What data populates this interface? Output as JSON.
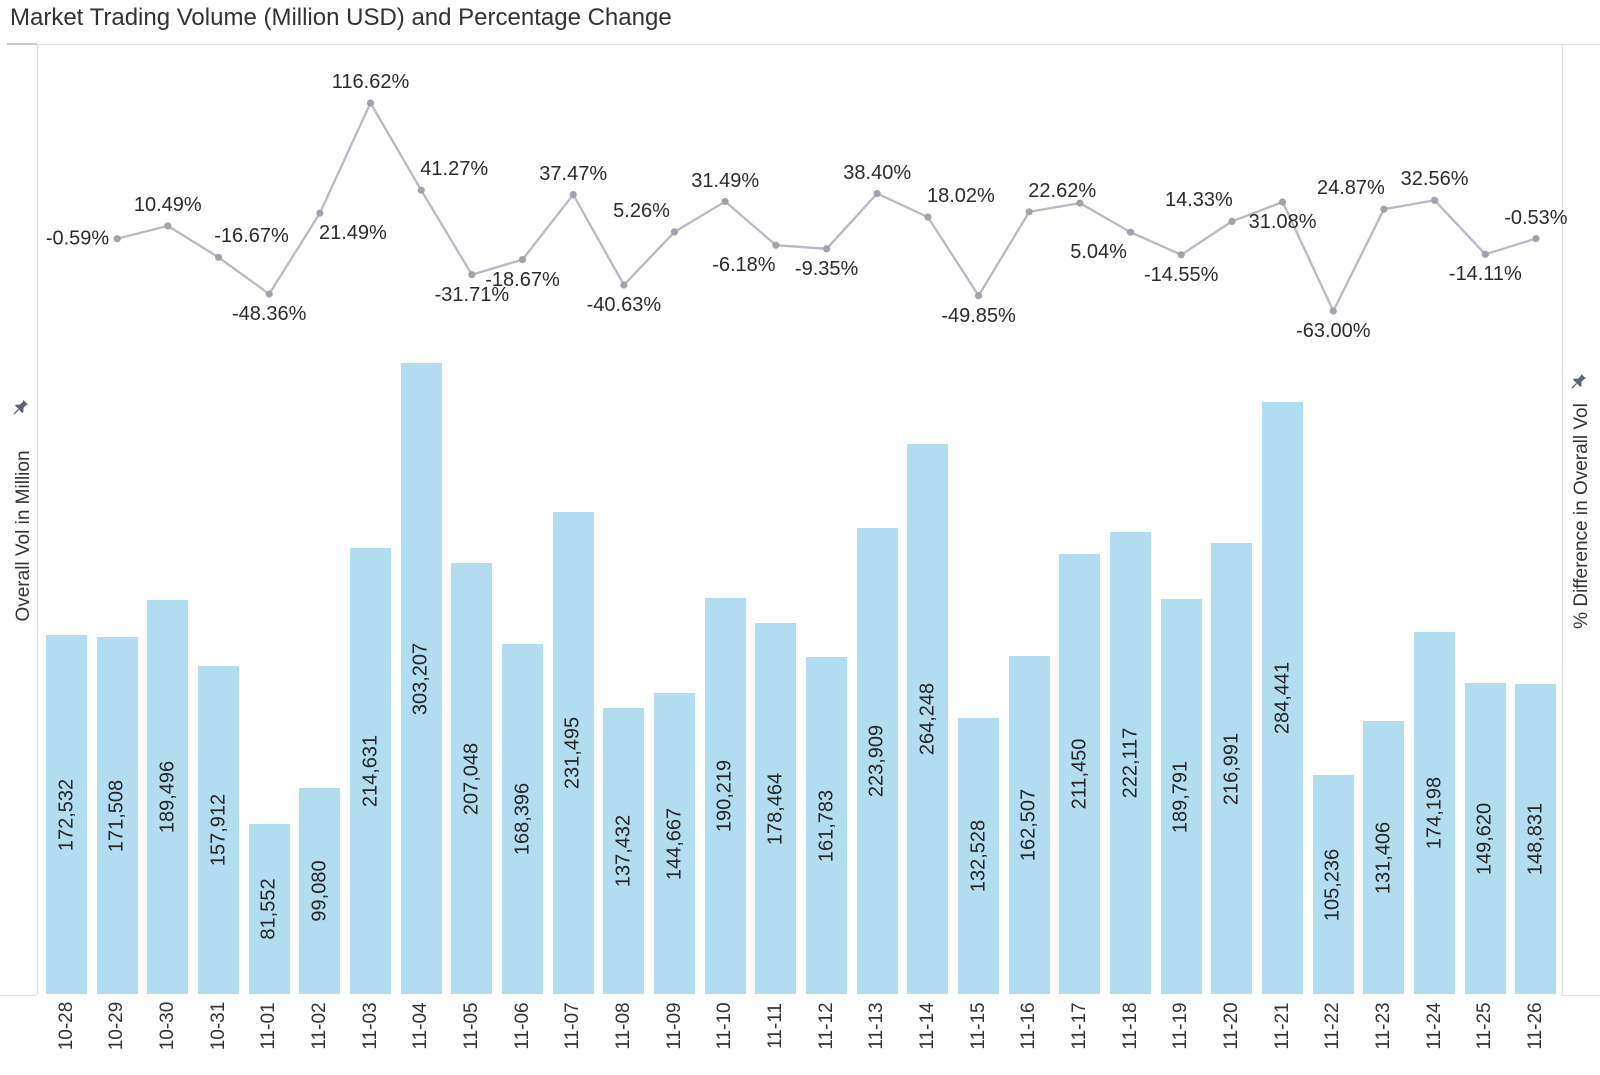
{
  "title": "Market Trading Volume (Million USD) and Percentage Change",
  "axes": {
    "left": {
      "title": "Overall Vol in Million",
      "pin_icon": "pushpin-icon"
    },
    "right": {
      "title": "% Difference in Overall Vol",
      "pin_icon": "pushpin-icon"
    }
  },
  "colors": {
    "bar": "#b2dcf0",
    "line": "#b7b9c4",
    "marker": "#9fa2af",
    "pin": "#5b6573",
    "border": "#e0e0e0",
    "border_dark": "#c9c9c9",
    "title_text": "#323232",
    "label_text": "#262626"
  },
  "chart_data": {
    "type": "combo-bar-line",
    "title": "Market Trading Volume (Million USD) and Percentage Change",
    "categories": [
      "10-28",
      "10-29",
      "10-30",
      "10-31",
      "11-01",
      "11-02",
      "11-03",
      "11-04",
      "11-05",
      "11-06",
      "11-07",
      "11-08",
      "11-09",
      "11-10",
      "11-11",
      "11-12",
      "11-13",
      "11-14",
      "11-15",
      "11-16",
      "11-17",
      "11-18",
      "11-19",
      "11-20",
      "11-21",
      "11-22",
      "11-23",
      "11-24",
      "11-25",
      "11-26"
    ],
    "grid": false,
    "legend": "none",
    "series": [
      {
        "name": "Overall Vol in Million",
        "type": "bar",
        "ylim": [
          0,
          456000
        ],
        "values": [
          172532,
          171508,
          189496,
          157912,
          81552,
          99080,
          214631,
          303207,
          207048,
          168396,
          231495,
          137432,
          144667,
          190219,
          178464,
          161783,
          223909,
          264248,
          132528,
          162507,
          211450,
          222117,
          189791,
          216991,
          284441,
          105236,
          131406,
          174198,
          149620,
          148831
        ],
        "value_labels": [
          "172,532",
          "171,508",
          "189,496",
          "157,912",
          "81,552",
          "99,080",
          "214,631",
          "303,207",
          "207,048",
          "168,396",
          "231,495",
          "137,432",
          "144,667",
          "190,219",
          "178,464",
          "161,783",
          "223,909",
          "264,248",
          "132,528",
          "162,507",
          "211,450",
          "222,117",
          "189,791",
          "216,991",
          "284,441",
          "105,236",
          "131,406",
          "174,198",
          "149,620",
          "148,831"
        ],
        "value_label_rotation": -90
      },
      {
        "name": "% Difference in Overall Vol",
        "type": "line",
        "x_categories": [
          "10-29",
          "10-30",
          "10-31",
          "11-01",
          "11-02",
          "11-03",
          "11-04",
          "11-05",
          "11-06",
          "11-07",
          "11-08",
          "11-09",
          "11-10",
          "11-11",
          "11-12",
          "11-13",
          "11-14",
          "11-15",
          "11-16",
          "11-17",
          "11-18",
          "11-19",
          "11-20",
          "11-21",
          "11-22",
          "11-23",
          "11-24",
          "11-25",
          "11-26"
        ],
        "values": [
          -0.59,
          10.49,
          -16.67,
          -48.36,
          21.49,
          116.62,
          41.27,
          -31.71,
          -18.67,
          37.47,
          -40.63,
          5.26,
          31.49,
          -6.18,
          -9.35,
          38.4,
          18.02,
          -49.85,
          22.62,
          30.12,
          5.04,
          -14.55,
          14.33,
          31.08,
          -63.0,
          24.87,
          32.56,
          -14.11,
          -0.53
        ],
        "point_labels": [
          "-0.59%",
          "10.49%",
          "-16.67%",
          "-48.36%",
          "21.49%",
          "116.62%",
          "41.27%",
          "-31.71%",
          "-18.67%",
          "37.47%",
          "-40.63%",
          "5.26%",
          "31.49%",
          "-6.18%",
          "-9.35%",
          "38.40%",
          "18.02%",
          "-49.85%",
          "22.62%",
          "",
          "5.04%",
          "-14.55%",
          "14.33%",
          "31.08%",
          "-63.00%",
          "24.87%",
          "32.56%",
          "-14.11%",
          "-0.53%"
        ],
        "label_sides": [
          "left",
          "above",
          "above-right",
          "below",
          "below-right",
          "above",
          "above-right",
          "below",
          "below",
          "above",
          "below",
          "above-left",
          "above",
          "below-left",
          "below",
          "above",
          "above-right",
          "below",
          "above-right",
          "none",
          "below-left",
          "below",
          "above-left",
          "below",
          "below",
          "above-left",
          "above",
          "below",
          "above"
        ]
      }
    ]
  }
}
